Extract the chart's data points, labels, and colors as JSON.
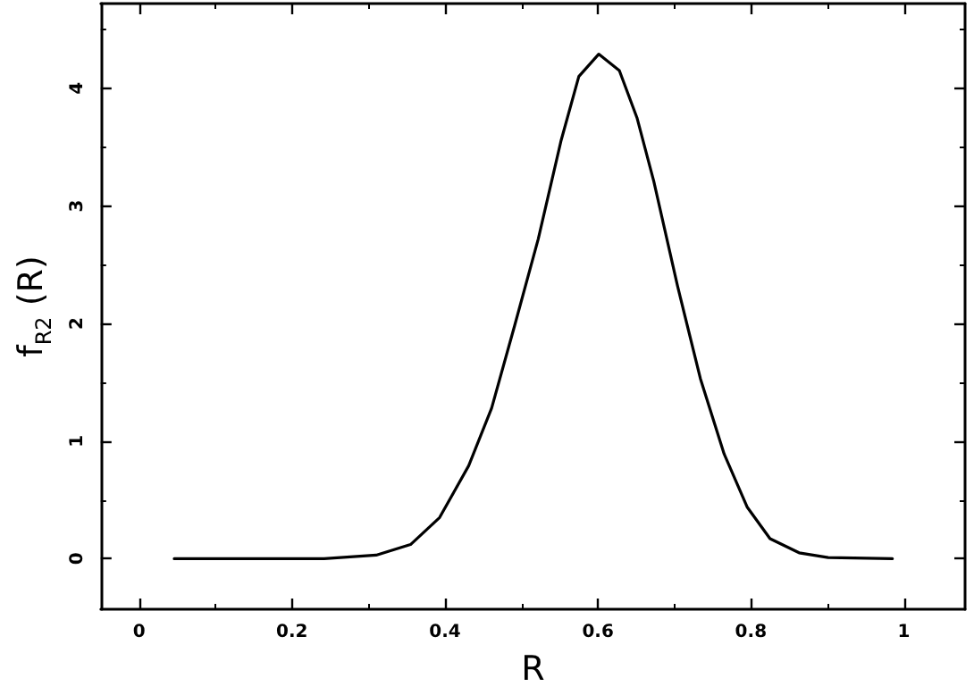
{
  "chart_data": {
    "type": "line",
    "xlabel": "R",
    "ylabel": "f$_{R2}$ (R)",
    "xlim": [
      -0.05,
      1.08
    ],
    "ylim": [
      -0.43,
      4.72
    ],
    "xticks": [
      0,
      0.2,
      0.4,
      0.6,
      0.8,
      1
    ],
    "yticks": [
      0,
      1,
      2,
      3,
      4
    ],
    "grid": false,
    "marker": "none",
    "line_style": "solid",
    "series": [
      {
        "color": "#000000",
        "x": [
          0.046,
          0.242,
          0.31,
          0.355,
          0.393,
          0.431,
          0.461,
          0.491,
          0.522,
          0.552,
          0.575,
          0.601,
          0.628,
          0.651,
          0.673,
          0.704,
          0.734,
          0.765,
          0.795,
          0.825,
          0.863,
          0.901,
          0.985
        ],
        "values": [
          0,
          0,
          0.03,
          0.12,
          0.35,
          0.79,
          1.28,
          1.98,
          2.72,
          3.56,
          4.1,
          4.29,
          4.15,
          3.75,
          3.21,
          2.32,
          1.53,
          0.89,
          0.44,
          0.17,
          0.05,
          0.01,
          0
        ]
      }
    ]
  }
}
